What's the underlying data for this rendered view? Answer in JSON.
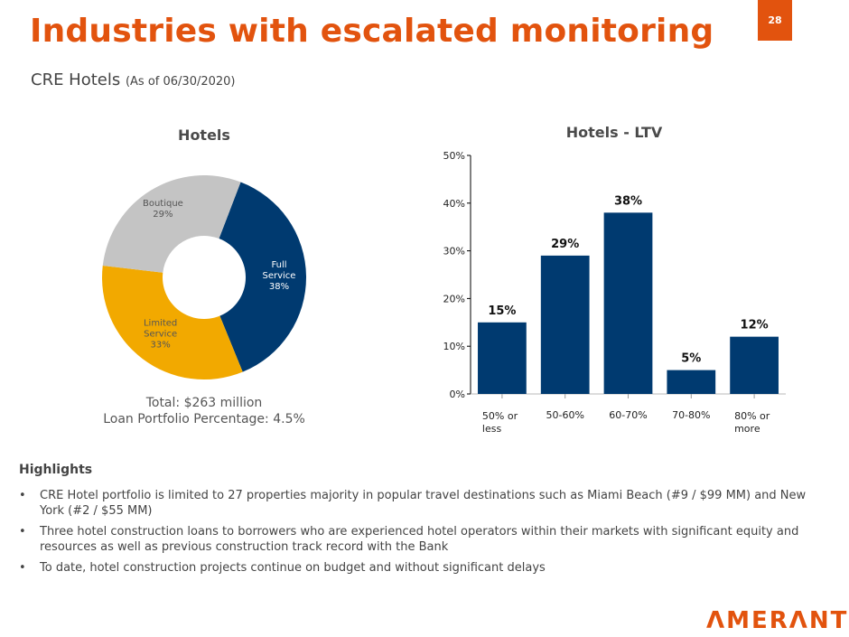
{
  "header": {
    "title": "Industries with escalated monitoring",
    "page_number": "28",
    "subtitle_main": "CRE Hotels",
    "subtitle_note": "(As of 06/30/2020)"
  },
  "colors": {
    "brand_orange": "#e2530e",
    "navy": "#003a70",
    "gold": "#f2a900",
    "gray": "#c4c4c4"
  },
  "chart_data": [
    {
      "type": "pie",
      "title": "Hotels",
      "donut": true,
      "slices": [
        {
          "label": "Full Service",
          "value": 38,
          "color": "#003a70",
          "text_color": "#ffffff"
        },
        {
          "label": "Limited Service",
          "value": 33,
          "color": "#f2a900",
          "text_color": "#555555"
        },
        {
          "label": "Boutique",
          "value": 29,
          "color": "#c4c4c4",
          "text_color": "#555555"
        }
      ],
      "slice_labels": [
        {
          "lines": [
            "Full",
            "Service",
            "38%"
          ]
        },
        {
          "lines": [
            "Limited",
            "Service",
            "33%"
          ]
        },
        {
          "lines": [
            "Boutique",
            "29%"
          ]
        }
      ],
      "footnote": [
        "Total: $263 million",
        "Loan Portfolio Percentage: 4.5%"
      ]
    },
    {
      "type": "bar",
      "title": "Hotels - LTV",
      "categories": [
        "50% or less",
        "50-60%",
        "60-70%",
        "70-80%",
        "80% or more"
      ],
      "category_lines": [
        [
          "50% or",
          "less"
        ],
        [
          "50-60%"
        ],
        [
          "60-70%"
        ],
        [
          "70-80%"
        ],
        [
          "80% or",
          "more"
        ]
      ],
      "values": [
        15,
        29,
        38,
        5,
        12
      ],
      "data_labels": [
        "15%",
        "29%",
        "38%",
        "5%",
        "12%"
      ],
      "ylim": [
        0,
        50
      ],
      "yticks": [
        0,
        10,
        20,
        30,
        40,
        50
      ],
      "ytick_labels": [
        "0%",
        "10%",
        "20%",
        "30%",
        "40%",
        "50%"
      ],
      "xlabel": "",
      "ylabel": "",
      "grid": false,
      "bar_color": "#003a70"
    }
  ],
  "highlights": {
    "heading": "Highlights",
    "bullet_glyph": "•",
    "items": [
      "CRE Hotel portfolio is limited to 27 properties majority in popular travel destinations such as Miami Beach (#9 / $99 MM) and New York (#2 / $55 MM)",
      "Three hotel construction loans to borrowers who are experienced hotel operators within their markets with significant equity and resources as well as previous construction track record with the Bank",
      "To date, hotel construction projects continue on budget and without significant delays"
    ]
  },
  "footer": {
    "logo_text": "ΛMERΛNT"
  }
}
